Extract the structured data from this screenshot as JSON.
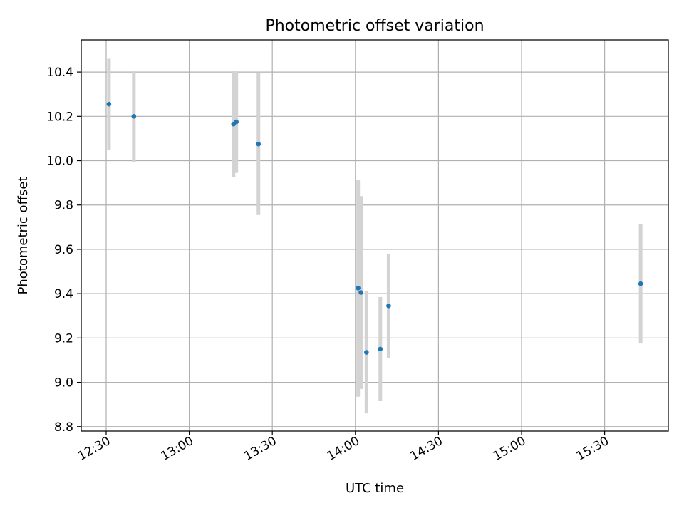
{
  "chart_data": {
    "type": "scatter",
    "title": "Photometric offset variation",
    "xlabel": "UTC time",
    "ylabel": "Photometric offset",
    "x_axis_kind": "time",
    "x_ticks": [
      "12:30",
      "13:00",
      "13:30",
      "14:00",
      "14:30",
      "15:00",
      "15:30"
    ],
    "y_ticks": [
      8.8,
      9.0,
      9.2,
      9.4,
      9.6,
      9.8,
      10.0,
      10.2,
      10.4
    ],
    "xlim": [
      "12:21",
      "15:53"
    ],
    "ylim": [
      8.78,
      10.545
    ],
    "grid": true,
    "error_bars": true,
    "colors": {
      "points": "#1f77b4",
      "error_bars": "#d3d3d3",
      "grid": "#b0b0b0"
    },
    "points": [
      {
        "x": "12:31",
        "y": 10.255,
        "err": 0.205
      },
      {
        "x": "12:40",
        "y": 10.2,
        "err": 0.205
      },
      {
        "x": "13:16",
        "y": 10.165,
        "err": 0.24
      },
      {
        "x": "13:17",
        "y": 10.175,
        "err": 0.23
      },
      {
        "x": "13:25",
        "y": 10.075,
        "err": 0.32
      },
      {
        "x": "14:01",
        "y": 9.425,
        "err": 0.49
      },
      {
        "x": "14:02",
        "y": 9.405,
        "err": 0.435
      },
      {
        "x": "14:04",
        "y": 9.135,
        "err": 0.275
      },
      {
        "x": "14:09",
        "y": 9.15,
        "err": 0.235
      },
      {
        "x": "14:12",
        "y": 9.345,
        "err": 0.235
      },
      {
        "x": "15:43",
        "y": 9.445,
        "err": 0.27
      }
    ]
  }
}
